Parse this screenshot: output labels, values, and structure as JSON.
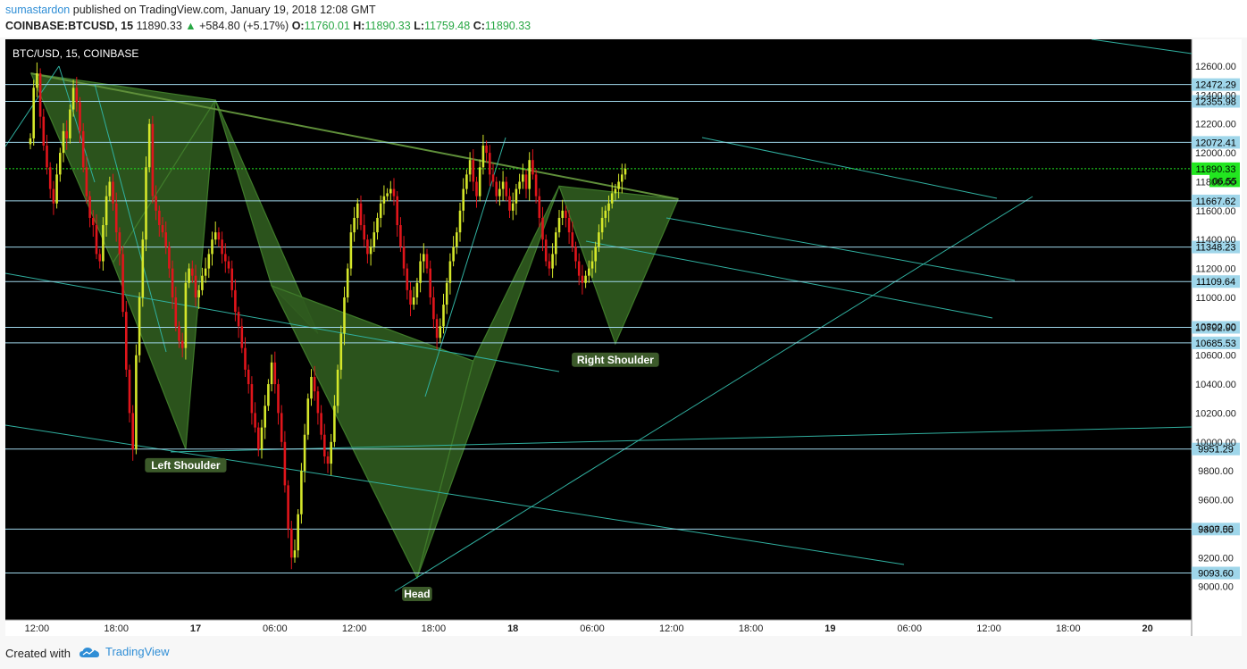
{
  "header": {
    "author": "sumastardon",
    "published": "published on TradingView.com, January 19, 2018 12:08 GMT",
    "symbol": "COINBASE:BTCUSD, 15",
    "last": "11890.33",
    "change": "+584.80 (+5.17%)",
    "o_label": "O:",
    "o": "11760.01",
    "h_label": "H:",
    "h": "11890.33",
    "l_label": "L:",
    "l": "11759.48",
    "c_label": "C:",
    "c": "11890.33"
  },
  "footer": {
    "created_with": "Created with",
    "brand": "TradingView"
  },
  "colors": {
    "background": "#000000",
    "up": "#d4e62a",
    "down": "#e0151b",
    "pattern_fill": "#2f5a1e",
    "pattern_stroke": "#3f7a2a",
    "trendline": "#30b0a0",
    "hline": "#9fd6ea",
    "price_tag": "#9fd6ea",
    "current": "#22e620",
    "label_bg": "#3c5a2a"
  },
  "chart_data": {
    "type": "candlestick",
    "title": "BTC/USD, 15, COINBASE",
    "ylim": [
      8800,
      12800
    ],
    "y_ticks": [
      "12600.00",
      "12400.00",
      "12200.00",
      "12000.00",
      "11800.00",
      "11600.00",
      "11400.00",
      "11200.00",
      "11000.00",
      "10800.00",
      "10600.00",
      "10400.00",
      "10200.00",
      "10000.00",
      "9800.00",
      "9600.00",
      "9400.00",
      "9200.00",
      "9000.00"
    ],
    "x_ticks": [
      "12:00",
      "18:00",
      "17",
      "06:00",
      "12:00",
      "18:00",
      "18",
      "06:00",
      "12:00",
      "18:00",
      "19",
      "06:00",
      "12:00",
      "18:00",
      "20"
    ],
    "x_tick_bars": [
      2,
      26,
      50,
      74,
      98,
      122,
      146,
      170,
      194,
      218,
      242,
      266,
      290,
      314,
      338
    ],
    "horizontal_levels": [
      "12472.29",
      "12355.98",
      "12072.41",
      "11667.62",
      "11348.23",
      "11109.64",
      "10792.90",
      "10685.53",
      "9951.29",
      "9397.55",
      "9093.60"
    ],
    "current_price": "11890.33",
    "partial_tag": "06.55",
    "pattern_labels": [
      "Left Shoulder",
      "Head",
      "Right Shoulder"
    ],
    "pattern_points": [
      [
        0.2,
        12550
      ],
      [
        25,
        11240
      ],
      [
        47,
        9950
      ],
      [
        56,
        12365
      ],
      [
        73,
        11080
      ],
      [
        87,
        10750
      ],
      [
        117,
        9060
      ],
      [
        134,
        10560
      ],
      [
        160,
        11770
      ],
      [
        177,
        10680
      ],
      [
        196,
        11680
      ]
    ],
    "neckline": [
      [
        0.2,
        12550
      ],
      [
        196,
        11680
      ]
    ],
    "candles_close": [
      12100,
      12450,
      12550,
      12250,
      12050,
      11900,
      11750,
      11650,
      11850,
      12000,
      12150,
      12100,
      12300,
      12450,
      12350,
      12150,
      11900,
      11700,
      11550,
      11500,
      11300,
      11250,
      11500,
      11700,
      11800,
      11650,
      11450,
      11300,
      10900,
      10500,
      10200,
      9950,
      10600,
      11000,
      11400,
      11900,
      12200,
      11700,
      11600,
      11500,
      11450,
      11350,
      11200,
      11000,
      10800,
      10700,
      10650,
      11100,
      11200,
      11150,
      11000,
      11050,
      11150,
      11200,
      11300,
      11400,
      11450,
      11400,
      11300,
      11250,
      11200,
      11050,
      10900,
      10800,
      10650,
      10500,
      10400,
      10200,
      10100,
      9950,
      10100,
      10250,
      10400,
      10550,
      10400,
      10200,
      10000,
      9700,
      9400,
      9200,
      9250,
      9500,
      9800,
      10050,
      10300,
      10450,
      10350,
      10200,
      10050,
      9900,
      9850,
      10000,
      10250,
      10500,
      10750,
      11000,
      11200,
      11450,
      11550,
      11650,
      11500,
      11400,
      11300,
      11350,
      11450,
      11550,
      11650,
      11700,
      11720,
      11750,
      11700,
      11500,
      11350,
      11200,
      11050,
      10950,
      11000,
      11100,
      11250,
      11300,
      11200,
      11000,
      10850,
      10720,
      10800,
      10950,
      11100,
      11250,
      11350,
      11450,
      11600,
      11750,
      11850,
      11950,
      11800,
      11700,
      11900,
      12050,
      12000,
      11850,
      11800,
      11700,
      11750,
      11800,
      11700,
      11600,
      11650,
      11750,
      11800,
      11850,
      11750,
      11950,
      11850,
      11700,
      11550,
      11400,
      11250,
      11200,
      11300,
      11450,
      11550,
      11600,
      11550,
      11450,
      11350,
      11250,
      11150,
      11100,
      11150,
      11200,
      11250,
      11350,
      11450,
      11550,
      11600,
      11650,
      11720,
      11750,
      11800,
      11850,
      11890.33
    ]
  }
}
